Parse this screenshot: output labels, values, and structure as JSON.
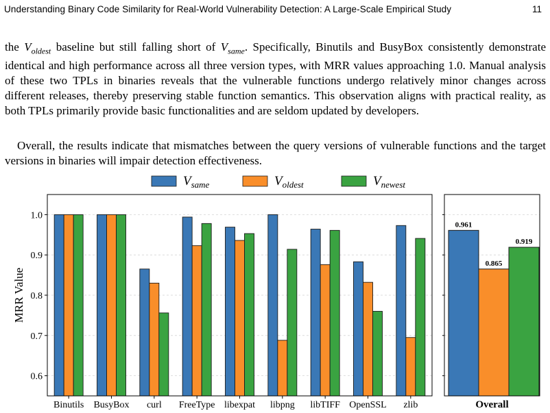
{
  "header": {
    "title": "Understanding Binary Code Similarity for Real-World Vulnerability Detection: A Large-Scale Empirical Study",
    "page": "11"
  },
  "body": {
    "p1_a": "the ",
    "p1_v_oldest_base": "V",
    "p1_v_oldest_sub": "oldest",
    "p1_b": " baseline but still falling short of ",
    "p1_v_same_base": "V",
    "p1_v_same_sub": "same",
    "p1_c": ". Specifically, Binutils and BusyBox consistently demonstrate identical and high performance across all three version types, with MRR values approaching 1.0. Manual analysis of these two TPLs in binaries reveals that the vulnerable functions undergo relatively minor changes across different releases, thereby preserving stable function semantics. This observation aligns with practical reality, as both TPLs primarily provide basic functionalities and are seldom updated by developers.",
    "p2": "Overall, the results indicate that mismatches between the query versions of vulnerable functions and the target versions in binaries will impair detection effectiveness."
  },
  "colors": {
    "same": "#3a78b6",
    "oldest": "#f98e2a",
    "newest": "#3aa341"
  },
  "chart_data": [
    {
      "type": "bar",
      "ylabel": "MRR Value",
      "ylim": [
        0.55,
        1.05
      ],
      "yticks": [
        "0.6",
        "0.7",
        "0.8",
        "0.9",
        "1.0"
      ],
      "categories": [
        "Binutils",
        "BusyBox",
        "curl",
        "FreeType",
        "libexpat",
        "libpng",
        "libTIFF",
        "OpenSSL",
        "zlib"
      ],
      "series": [
        {
          "name": "V_same",
          "base": "V",
          "sub": "same",
          "values": [
            1.0,
            1.0,
            0.865,
            0.994,
            0.969,
            1.0,
            0.964,
            0.883,
            0.973
          ]
        },
        {
          "name": "V_oldest",
          "base": "V",
          "sub": "oldest",
          "values": [
            1.0,
            1.0,
            0.83,
            0.923,
            0.936,
            0.688,
            0.876,
            0.832,
            0.695
          ]
        },
        {
          "name": "V_newest",
          "base": "V",
          "sub": "newest",
          "values": [
            1.0,
            1.0,
            0.756,
            0.978,
            0.953,
            0.914,
            0.961,
            0.76,
            0.941
          ]
        }
      ],
      "grid": true,
      "legend": "top"
    },
    {
      "type": "bar",
      "xlabel": "Overall",
      "ylim": [
        0.55,
        1.05
      ],
      "series": [
        {
          "name": "V_same",
          "values": [
            0.961
          ],
          "label": "0.961"
        },
        {
          "name": "V_oldest",
          "values": [
            0.865
          ],
          "label": "0.865"
        },
        {
          "name": "V_newest",
          "values": [
            0.919
          ],
          "label": "0.919"
        }
      ],
      "grid": true
    }
  ]
}
